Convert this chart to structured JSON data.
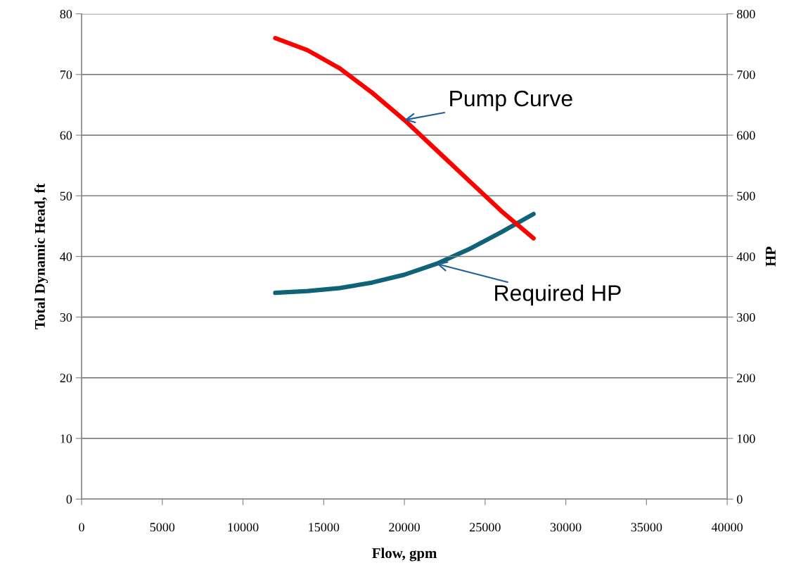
{
  "chart_data": {
    "type": "line",
    "xlabel": "Flow, gpm",
    "ylabel": "Total Dynamic Head, ft",
    "y2label": "HP",
    "x": [
      12000,
      14000,
      16000,
      18000,
      20000,
      22000,
      24000,
      26000,
      28000
    ],
    "series": [
      {
        "name": "Pump Curve",
        "color": "#ff0000",
        "values": [
          76,
          74,
          71,
          67,
          62.5,
          57.5,
          52.5,
          47.5,
          43
        ]
      },
      {
        "name": "Required HP",
        "color": "#0e6378",
        "axis": "y2",
        "values": [
          340,
          343,
          348,
          357,
          370,
          388,
          412,
          440,
          470
        ]
      }
    ],
    "xlim": [
      0,
      40000
    ],
    "xticks": [
      0,
      5000,
      10000,
      15000,
      20000,
      25000,
      30000,
      35000,
      40000
    ],
    "ylim": [
      0,
      80
    ],
    "yticks": [
      0,
      10,
      20,
      30,
      40,
      50,
      60,
      70,
      80
    ],
    "y2lim": [
      0,
      800
    ],
    "y2ticks": [
      0,
      100,
      200,
      300,
      400,
      500,
      600,
      700,
      800
    ],
    "grid": "y",
    "legend": false,
    "marker": "none",
    "line_style": "solid"
  }
}
